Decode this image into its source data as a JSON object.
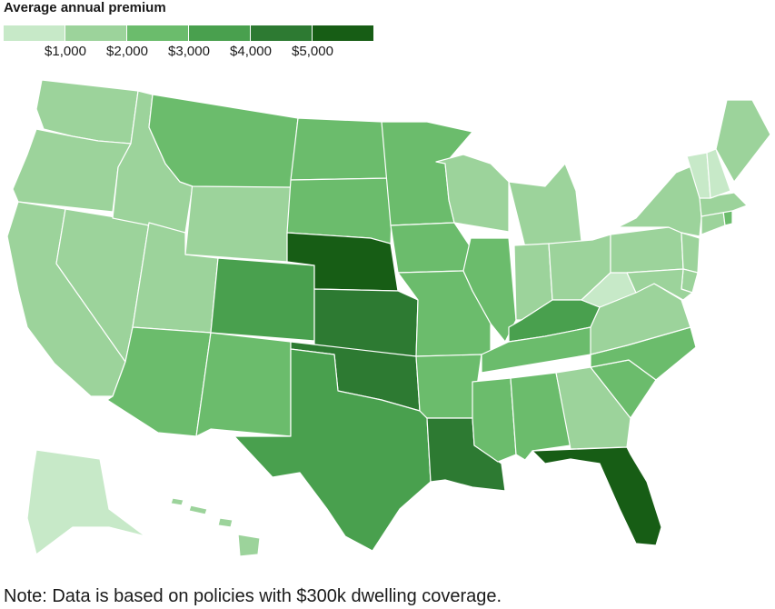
{
  "legend": {
    "title": "Average annual premium",
    "colors": [
      "#c7e9c8",
      "#9cd39b",
      "#6bbc6c",
      "#49a04e",
      "#2d7a32",
      "#175d15"
    ],
    "labels": [
      "$1,000",
      "$2,000",
      "$3,000",
      "$4,000",
      "$5,000"
    ]
  },
  "note": "Note: Data is based on policies with $300k dwelling coverage.",
  "states": [
    {
      "id": "WA",
      "tier": 1
    },
    {
      "id": "OR",
      "tier": 1
    },
    {
      "id": "CA",
      "tier": 1
    },
    {
      "id": "NV",
      "tier": 1
    },
    {
      "id": "ID",
      "tier": 1
    },
    {
      "id": "UT",
      "tier": 1
    },
    {
      "id": "WY",
      "tier": 1
    },
    {
      "id": "MT",
      "tier": 2
    },
    {
      "id": "AZ",
      "tier": 2
    },
    {
      "id": "NM",
      "tier": 2
    },
    {
      "id": "CO",
      "tier": 3
    },
    {
      "id": "ND",
      "tier": 2
    },
    {
      "id": "SD",
      "tier": 2
    },
    {
      "id": "NE",
      "tier": 5
    },
    {
      "id": "KS",
      "tier": 4
    },
    {
      "id": "OK",
      "tier": 4
    },
    {
      "id": "TX",
      "tier": 3
    },
    {
      "id": "MN",
      "tier": 2
    },
    {
      "id": "IA",
      "tier": 2
    },
    {
      "id": "MO",
      "tier": 2
    },
    {
      "id": "AR",
      "tier": 2
    },
    {
      "id": "LA",
      "tier": 4
    },
    {
      "id": "WI",
      "tier": 1
    },
    {
      "id": "IL",
      "tier": 2
    },
    {
      "id": "MI",
      "tier": 1
    },
    {
      "id": "IN",
      "tier": 1
    },
    {
      "id": "OH",
      "tier": 1
    },
    {
      "id": "KY",
      "tier": 3
    },
    {
      "id": "TN",
      "tier": 2
    },
    {
      "id": "MS",
      "tier": 2
    },
    {
      "id": "AL",
      "tier": 2
    },
    {
      "id": "GA",
      "tier": 1
    },
    {
      "id": "FL",
      "tier": 5
    },
    {
      "id": "SC",
      "tier": 2
    },
    {
      "id": "NC",
      "tier": 2
    },
    {
      "id": "VA",
      "tier": 1
    },
    {
      "id": "WV",
      "tier": 0
    },
    {
      "id": "PA",
      "tier": 1
    },
    {
      "id": "NY",
      "tier": 1
    },
    {
      "id": "NJ",
      "tier": 1
    },
    {
      "id": "DE",
      "tier": 1
    },
    {
      "id": "MD",
      "tier": 1
    },
    {
      "id": "CT",
      "tier": 1
    },
    {
      "id": "RI",
      "tier": 2
    },
    {
      "id": "MA",
      "tier": 1
    },
    {
      "id": "VT",
      "tier": 0
    },
    {
      "id": "NH",
      "tier": 0
    },
    {
      "id": "ME",
      "tier": 1
    },
    {
      "id": "AK",
      "tier": 0
    },
    {
      "id": "HI",
      "tier": 1
    }
  ]
}
